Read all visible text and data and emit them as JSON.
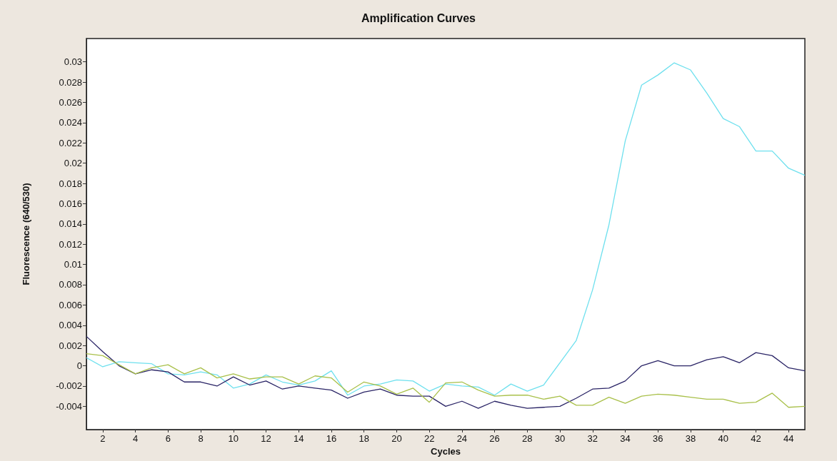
{
  "chart_data": {
    "type": "line",
    "title": "Amplification Curves",
    "xlabel": "Cycles",
    "ylabel": "Fluorescence (640/530)",
    "x": [
      1,
      2,
      3,
      4,
      5,
      6,
      7,
      8,
      9,
      10,
      11,
      12,
      13,
      14,
      15,
      16,
      17,
      18,
      19,
      20,
      21,
      22,
      23,
      24,
      25,
      26,
      27,
      28,
      29,
      30,
      31,
      32,
      33,
      34,
      35,
      36,
      37,
      38,
      39,
      40,
      41,
      42,
      43,
      44,
      45
    ],
    "series": [
      {
        "color": "#6ee0ee",
        "values": [
          0.0008,
          -0.0001,
          0.0004,
          0.0003,
          0.0002,
          -0.0008,
          -0.0009,
          -0.0006,
          -0.0009,
          -0.0022,
          -0.0018,
          -0.0009,
          -0.0016,
          -0.0019,
          -0.0015,
          -0.0005,
          -0.0029,
          -0.002,
          -0.0018,
          -0.0014,
          -0.0015,
          -0.0025,
          -0.0018,
          -0.002,
          -0.0021,
          -0.0029,
          -0.0018,
          -0.0025,
          -0.0019,
          0.0003,
          0.0025,
          0.0075,
          0.0139,
          0.0222,
          0.0277,
          0.0287,
          0.0299,
          0.0292,
          0.0269,
          0.0244,
          0.0236,
          0.0212,
          0.0212,
          0.0195,
          0.0188
        ]
      },
      {
        "color": "#2a2466",
        "values": [
          0.0029,
          0.0014,
          0,
          -0.0008,
          -0.0004,
          -0.0006,
          -0.0016,
          -0.0016,
          -0.002,
          -0.0011,
          -0.0019,
          -0.0015,
          -0.0023,
          -0.002,
          -0.0022,
          -0.0024,
          -0.0032,
          -0.0026,
          -0.0023,
          -0.0029,
          -0.003,
          -0.003,
          -0.004,
          -0.0035,
          -0.0042,
          -0.0035,
          -0.0039,
          -0.0042,
          -0.0041,
          -0.004,
          -0.0032,
          -0.0023,
          -0.0022,
          -0.0015,
          0,
          0.0005,
          0,
          0,
          0.0006,
          0.0009,
          0.0003,
          0.0013,
          0.001,
          -0.0002,
          -0.0005
        ]
      },
      {
        "color": "#a9c04a",
        "values": [
          0.0012,
          0.001,
          0.0001,
          -0.0008,
          -0.0002,
          0.0001,
          -0.0008,
          -0.0002,
          -0.0012,
          -0.0008,
          -0.0013,
          -0.0011,
          -0.0011,
          -0.0018,
          -0.001,
          -0.0012,
          -0.0026,
          -0.0016,
          -0.002,
          -0.0028,
          -0.0022,
          -0.0036,
          -0.0017,
          -0.0016,
          -0.0024,
          -0.003,
          -0.0029,
          -0.0029,
          -0.0033,
          -0.003,
          -0.0039,
          -0.0039,
          -0.0031,
          -0.0037,
          -0.003,
          -0.0028,
          -0.0029,
          -0.0031,
          -0.0033,
          -0.0033,
          -0.0037,
          -0.0036,
          -0.0027,
          -0.0041,
          -0.004
        ]
      }
    ],
    "xlim": [
      1,
      45
    ],
    "xticks": [
      2,
      4,
      6,
      8,
      10,
      12,
      14,
      16,
      18,
      20,
      22,
      24,
      26,
      28,
      30,
      32,
      34,
      36,
      38,
      40,
      42,
      44
    ],
    "ylim": [
      -0.0063,
      0.0323
    ],
    "yticks": [
      -0.004,
      -0.002,
      0,
      0.002,
      0.004,
      0.006,
      0.008,
      0.01,
      0.012,
      0.014,
      0.016,
      0.018,
      0.02,
      0.022,
      0.024,
      0.026,
      0.028,
      0.03
    ],
    "grid": false,
    "marker": "none",
    "line_style": "solid"
  }
}
